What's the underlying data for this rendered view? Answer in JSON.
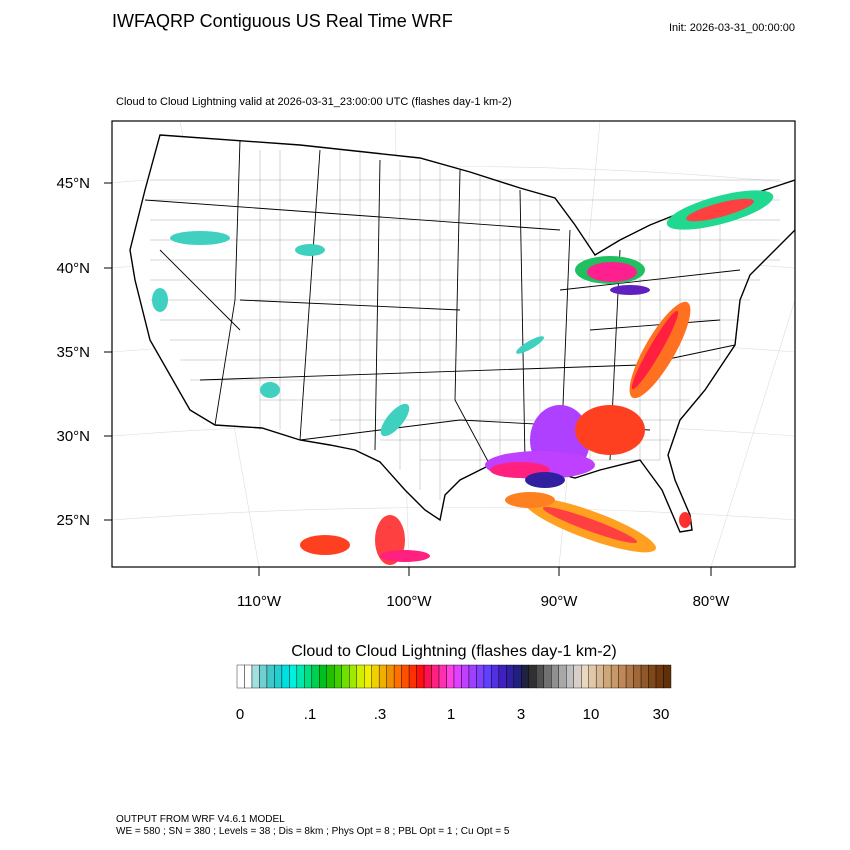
{
  "header": {
    "title": "IWFAQRP Contiguous US Real Time WRF",
    "init": "Init: 2026-03-31_00:00:00"
  },
  "map": {
    "subtitle": "Cloud to Cloud Lightning valid at 2026-03-31_23:00:00 UTC   (flashes day-1 km-2)",
    "lat_labels": [
      "45°N",
      "40°N",
      "35°N",
      "30°N",
      "25°N"
    ],
    "lon_labels": [
      "110°W",
      "100°W",
      "90°W",
      "80°W"
    ]
  },
  "colorbar": {
    "title": "Cloud to Cloud Lightning  (flashes day-1 km-2)",
    "labels": [
      "0",
      ".1",
      ".3",
      "1",
      "3",
      "10",
      "30"
    ]
  },
  "footer": {
    "line1": "OUTPUT FROM WRF V4.6.1 MODEL",
    "line2": "WE = 580 ; SN = 380 ; Levels = 38 ; Dis = 8km ; Phys Opt = 8 ; PBL Opt = 1 ; Cu Opt = 5"
  }
}
